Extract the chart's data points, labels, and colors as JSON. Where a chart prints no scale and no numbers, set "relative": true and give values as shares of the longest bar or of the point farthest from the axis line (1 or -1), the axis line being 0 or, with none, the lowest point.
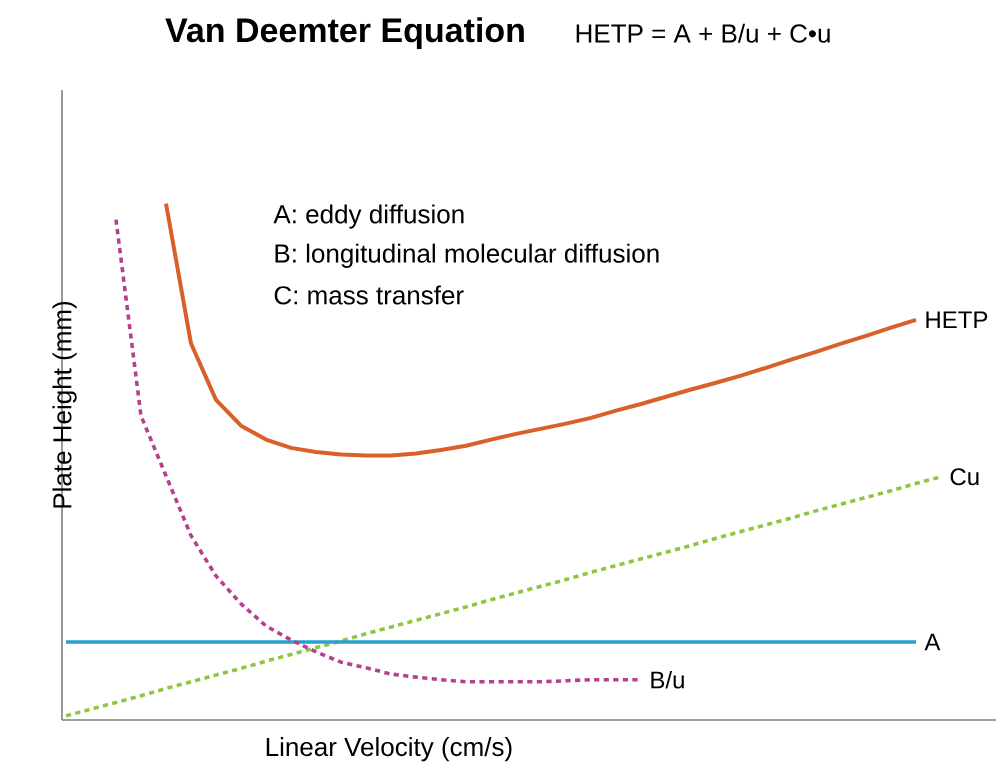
{
  "chart_data": {
    "type": "line",
    "title": "Van Deemter Equation",
    "subtitle": "HETP = A + B/u + C•u",
    "xlabel": "Linear Velocity (cm/s)",
    "ylabel": "Plate Height (mm)",
    "relative": true,
    "tick_labels": false,
    "legend": false,
    "annotations": [
      "A: eddy diffusion",
      "B: longitudinal molecular diffusion",
      "C: mass transfer"
    ],
    "categories": [
      null,
      null,
      null,
      null,
      null,
      null,
      null,
      null,
      null,
      null,
      null,
      null,
      null,
      null,
      null,
      null,
      null,
      null,
      null,
      null,
      null,
      null,
      null,
      null,
      null,
      null,
      null,
      null,
      null,
      null,
      null,
      null,
      null,
      null,
      null,
      null
    ],
    "series": [
      {
        "name": "HETP",
        "color": "#d95f2b",
        "line_style": "solid",
        "values": [
          null,
          null,
          null,
          null,
          1.0,
          0.729,
          0.62,
          0.57,
          0.543,
          0.527,
          0.519,
          0.514,
          0.512,
          0.512,
          0.516,
          0.523,
          0.531,
          0.543,
          0.554,
          0.564,
          0.574,
          0.585,
          0.599,
          0.612,
          0.626,
          0.64,
          0.653,
          0.667,
          0.682,
          0.698,
          0.713,
          0.729,
          0.744,
          0.76,
          0.775,
          null
        ]
      },
      {
        "name": "Cu",
        "color": "#8dc63f",
        "line_style": "dotted",
        "values": [
          0.008,
          0.021,
          0.034,
          0.047,
          0.061,
          0.074,
          0.087,
          0.1,
          0.114,
          0.127,
          0.14,
          0.153,
          0.167,
          0.18,
          0.193,
          0.206,
          0.219,
          0.233,
          0.246,
          0.259,
          0.272,
          0.286,
          0.299,
          0.312,
          0.325,
          0.338,
          0.352,
          0.365,
          0.378,
          0.391,
          0.405,
          0.418,
          0.431,
          0.444,
          0.458,
          0.471
        ]
      },
      {
        "name": "A",
        "color": "#2aa0d0",
        "line_style": "solid",
        "values": [
          0.151,
          0.151,
          0.151,
          0.151,
          0.151,
          0.151,
          0.151,
          0.151,
          0.151,
          0.151,
          0.151,
          0.151,
          0.151,
          0.151,
          0.151,
          0.151,
          0.151,
          0.151,
          0.151,
          0.151,
          0.151,
          0.151,
          0.151,
          0.151,
          0.151,
          0.151,
          0.151,
          0.151,
          0.151,
          0.151,
          0.151,
          0.151,
          0.151,
          0.151,
          0.151,
          null
        ]
      },
      {
        "name": "B/u",
        "color": "#b83e8e",
        "line_style": "dotted",
        "values": [
          null,
          null,
          0.969,
          0.589,
          0.473,
          0.357,
          0.279,
          0.225,
          0.182,
          0.155,
          0.132,
          0.112,
          0.101,
          0.089,
          0.083,
          0.078,
          0.074,
          0.074,
          0.074,
          0.074,
          0.076,
          0.078,
          0.078,
          0.078,
          null,
          null,
          null,
          null,
          null,
          null,
          null,
          null,
          null,
          null,
          null,
          null
        ]
      }
    ]
  }
}
